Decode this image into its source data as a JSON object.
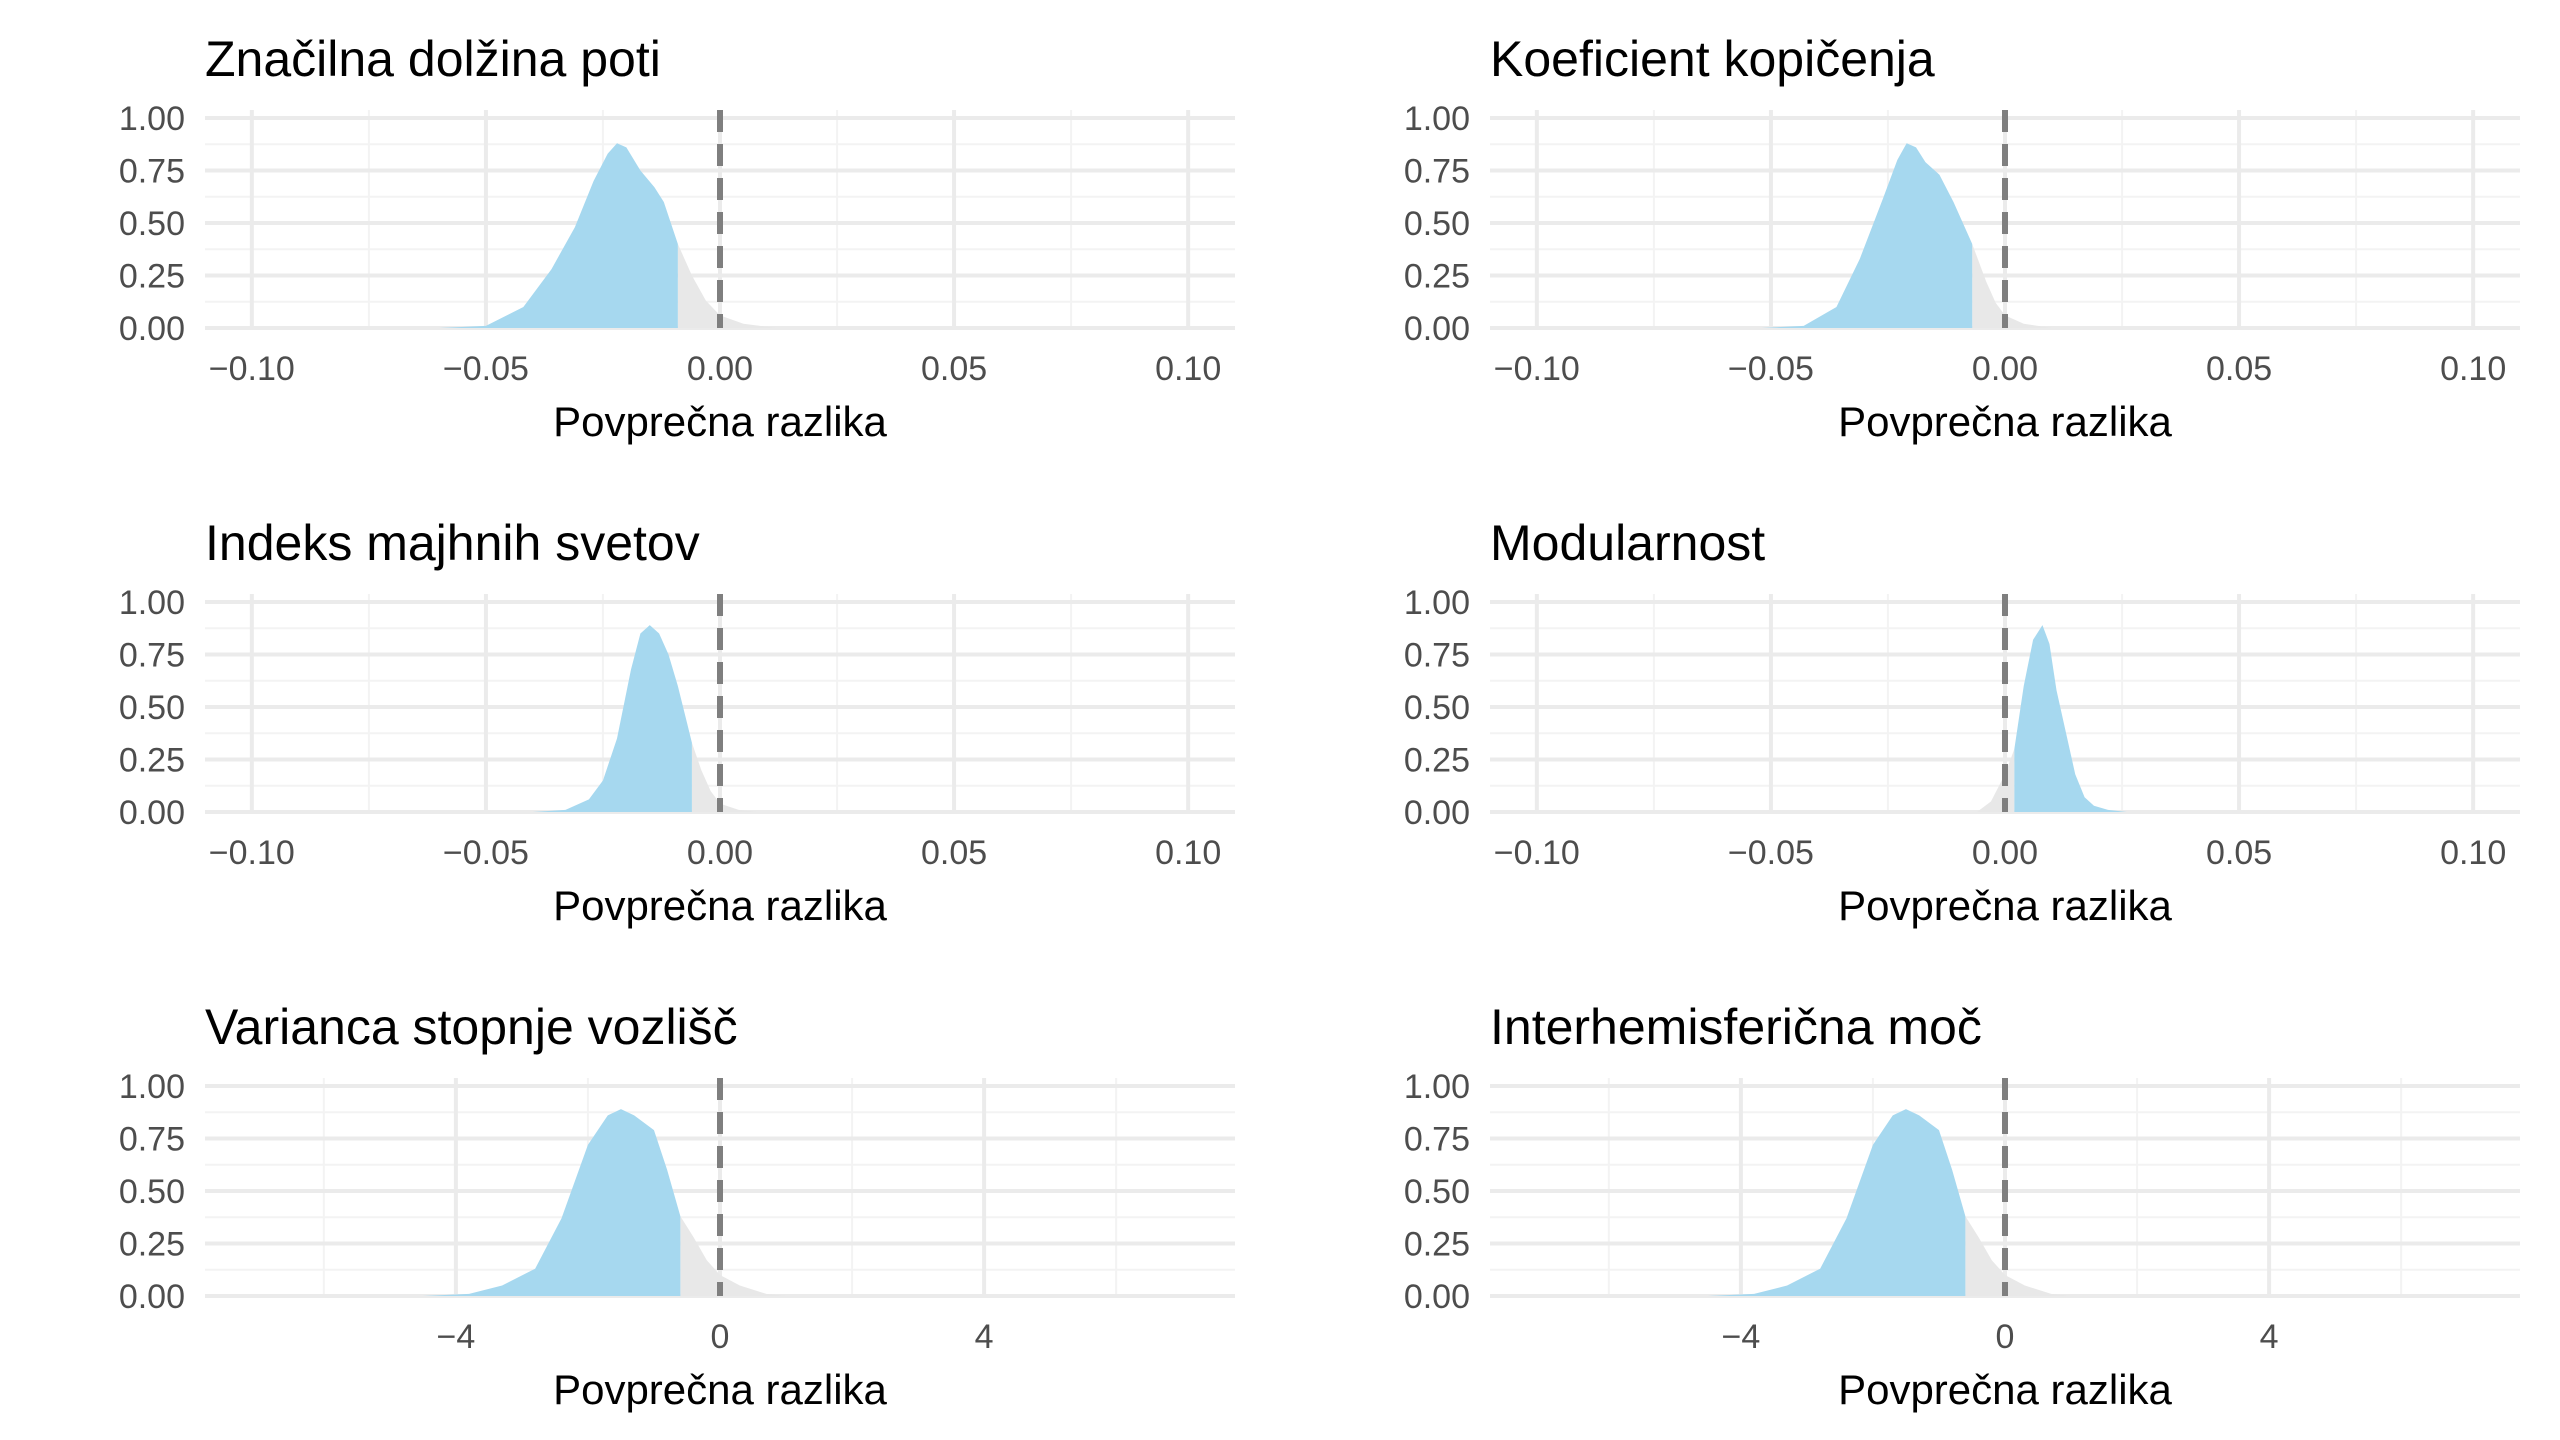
{
  "colors": {
    "shade": "#a6d8ef",
    "tail": "#e8e8e8",
    "grid_major": "#ebebeb",
    "grid_minor": "#f3f3f3",
    "ref_line": "#7f7f7f"
  },
  "chart_data": [
    {
      "type": "area",
      "title": "Značilna dolžina poti",
      "xlabel": "Povprečna razlika",
      "ylabel": "",
      "xlim": [
        -0.11,
        0.11
      ],
      "ylim": [
        0,
        1
      ],
      "x_ticks": [
        -0.1,
        -0.05,
        0,
        0.05,
        0.1
      ],
      "x_tick_labels": [
        "−0.10",
        "−0.05",
        "0.00",
        "0.05",
        "0.10"
      ],
      "y_ticks": [
        0,
        0.25,
        0.5,
        0.75,
        1
      ],
      "y_tick_labels": [
        "0.00",
        "0.25",
        "0.50",
        "0.75",
        "1.00"
      ],
      "reference_line_x": 0,
      "shade_upper_x": -0.009,
      "curve": {
        "x": [
          -0.06,
          -0.05,
          -0.042,
          -0.036,
          -0.031,
          -0.027,
          -0.024,
          -0.022,
          -0.02,
          -0.017,
          -0.014,
          -0.012,
          -0.009,
          -0.006,
          -0.003,
          0,
          0.005,
          0.012
        ],
        "y": [
          0,
          0.01,
          0.1,
          0.28,
          0.48,
          0.7,
          0.83,
          0.88,
          0.86,
          0.75,
          0.67,
          0.6,
          0.4,
          0.25,
          0.13,
          0.06,
          0.02,
          0
        ]
      }
    },
    {
      "type": "area",
      "title": "Koeficient kopičenja",
      "xlabel": "Povprečna razlika",
      "ylabel": "",
      "xlim": [
        -0.11,
        0.11
      ],
      "ylim": [
        0,
        1
      ],
      "x_ticks": [
        -0.1,
        -0.05,
        0,
        0.05,
        0.1
      ],
      "x_tick_labels": [
        "−0.10",
        "−0.05",
        "0.00",
        "0.05",
        "0.10"
      ],
      "y_ticks": [
        0,
        0.25,
        0.5,
        0.75,
        1
      ],
      "y_tick_labels": [
        "0.00",
        "0.25",
        "0.50",
        "0.75",
        "1.00"
      ],
      "reference_line_x": 0,
      "shade_upper_x": -0.007,
      "curve": {
        "x": [
          -0.052,
          -0.043,
          -0.036,
          -0.031,
          -0.026,
          -0.023,
          -0.021,
          -0.019,
          -0.017,
          -0.014,
          -0.011,
          -0.008,
          -0.007,
          -0.004,
          -0.002,
          0,
          0.004,
          0.01
        ],
        "y": [
          0,
          0.01,
          0.1,
          0.33,
          0.62,
          0.8,
          0.88,
          0.86,
          0.79,
          0.73,
          0.6,
          0.45,
          0.4,
          0.22,
          0.12,
          0.06,
          0.02,
          0
        ]
      }
    },
    {
      "type": "area",
      "title": "Indeks majhnih svetov",
      "xlabel": "Povprečna razlika",
      "ylabel": "",
      "xlim": [
        -0.11,
        0.11
      ],
      "ylim": [
        0,
        1
      ],
      "x_ticks": [
        -0.1,
        -0.05,
        0,
        0.05,
        0.1
      ],
      "x_tick_labels": [
        "−0.10",
        "−0.05",
        "0.00",
        "0.05",
        "0.10"
      ],
      "y_ticks": [
        0,
        0.25,
        0.5,
        0.75,
        1
      ],
      "y_tick_labels": [
        "0.00",
        "0.25",
        "0.50",
        "0.75",
        "1.00"
      ],
      "reference_line_x": 0,
      "shade_upper_x": -0.006,
      "curve": {
        "x": [
          -0.04,
          -0.033,
          -0.028,
          -0.025,
          -0.022,
          -0.019,
          -0.017,
          -0.015,
          -0.013,
          -0.011,
          -0.009,
          -0.007,
          -0.006,
          -0.004,
          -0.002,
          0,
          0.004,
          0.008
        ],
        "y": [
          0,
          0.01,
          0.06,
          0.15,
          0.35,
          0.68,
          0.85,
          0.89,
          0.85,
          0.75,
          0.6,
          0.42,
          0.33,
          0.2,
          0.1,
          0.04,
          0.01,
          0
        ]
      }
    },
    {
      "type": "area",
      "title": "Modularnost",
      "xlabel": "Povprečna razlika",
      "ylabel": "",
      "xlim": [
        -0.11,
        0.11
      ],
      "ylim": [
        0,
        1
      ],
      "x_ticks": [
        -0.1,
        -0.05,
        0,
        0.05,
        0.1
      ],
      "x_tick_labels": [
        "−0.10",
        "−0.05",
        "0.00",
        "0.05",
        "0.10"
      ],
      "y_ticks": [
        0,
        0.25,
        0.5,
        0.75,
        1
      ],
      "y_tick_labels": [
        "0.00",
        "0.25",
        "0.50",
        "0.75",
        "1.00"
      ],
      "reference_line_x": 0,
      "shade_lower_x": 0.002,
      "curve": {
        "x": [
          -0.006,
          -0.003,
          0,
          0.002,
          0.004,
          0.006,
          0.008,
          0.0095,
          0.011,
          0.013,
          0.015,
          0.017,
          0.019,
          0.022,
          0.026
        ],
        "y": [
          0,
          0.05,
          0.18,
          0.3,
          0.6,
          0.82,
          0.89,
          0.8,
          0.58,
          0.38,
          0.18,
          0.07,
          0.03,
          0.01,
          0
        ]
      }
    },
    {
      "type": "area",
      "title": "Varianca stopnje vozlišč",
      "xlabel": "Povprečna razlika",
      "ylabel": "",
      "xlim": [
        -7.8,
        7.8
      ],
      "ylim": [
        0,
        1
      ],
      "x_ticks": [
        -4,
        0,
        4
      ],
      "x_tick_labels": [
        "−4",
        "0",
        "4"
      ],
      "y_ticks": [
        0,
        0.25,
        0.5,
        0.75,
        1
      ],
      "y_tick_labels": [
        "0.00",
        "0.25",
        "0.50",
        "0.75",
        "1.00"
      ],
      "reference_line_x": 0,
      "shade_upper_x": -0.6,
      "curve": {
        "x": [
          -4.5,
          -3.8,
          -3.3,
          -2.8,
          -2.4,
          -2.0,
          -1.7,
          -1.5,
          -1.3,
          -1.0,
          -0.8,
          -0.6,
          -0.4,
          -0.2,
          0,
          0.3,
          0.7,
          1.0
        ],
        "y": [
          0,
          0.01,
          0.05,
          0.13,
          0.37,
          0.72,
          0.86,
          0.89,
          0.86,
          0.79,
          0.6,
          0.38,
          0.28,
          0.17,
          0.1,
          0.05,
          0.01,
          0
        ]
      }
    },
    {
      "type": "area",
      "title": "Interhemisferična moč",
      "xlabel": "Povprečna razlika",
      "ylabel": "",
      "xlim": [
        -7.8,
        7.8
      ],
      "ylim": [
        0,
        1
      ],
      "x_ticks": [
        -4,
        0,
        4
      ],
      "x_tick_labels": [
        "−4",
        "0",
        "4"
      ],
      "y_ticks": [
        0,
        0.25,
        0.5,
        0.75,
        1
      ],
      "y_tick_labels": [
        "0.00",
        "0.25",
        "0.50",
        "0.75",
        "1.00"
      ],
      "reference_line_x": 0,
      "shade_upper_x": -0.6,
      "curve": {
        "x": [
          -4.5,
          -3.8,
          -3.3,
          -2.8,
          -2.4,
          -2.0,
          -1.7,
          -1.5,
          -1.3,
          -1.0,
          -0.8,
          -0.6,
          -0.4,
          -0.2,
          0,
          0.3,
          0.7,
          1.0
        ],
        "y": [
          0,
          0.01,
          0.05,
          0.13,
          0.37,
          0.72,
          0.86,
          0.89,
          0.86,
          0.79,
          0.6,
          0.38,
          0.28,
          0.17,
          0.1,
          0.05,
          0.01,
          0
        ]
      }
    }
  ]
}
